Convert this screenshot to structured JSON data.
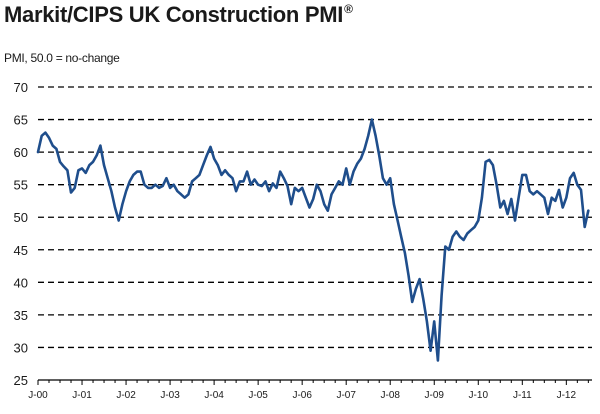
{
  "header": {
    "title": "Markit/CIPS UK Construction PMI",
    "title_mark": "®",
    "subtitle": "PMI, 50.0 = no-change"
  },
  "colors": {
    "line": "#1f4e8c",
    "grid": "#000000"
  },
  "chart_data": {
    "type": "line",
    "title": "Markit/CIPS UK Construction PMI",
    "subtitle": "PMI, 50.0 = no-change",
    "xlabel": "",
    "ylabel": "",
    "ylim": [
      25,
      70
    ],
    "yticks": [
      25,
      30,
      35,
      40,
      45,
      50,
      55,
      60,
      65,
      70
    ],
    "xlim": [
      2000.0,
      2012.583
    ],
    "xticks": [
      {
        "value": 2000,
        "label": "J-00"
      },
      {
        "value": 2001,
        "label": "J-01"
      },
      {
        "value": 2002,
        "label": "J-02"
      },
      {
        "value": 2003,
        "label": "J-03"
      },
      {
        "value": 2004,
        "label": "J-04"
      },
      {
        "value": 2005,
        "label": "J-05"
      },
      {
        "value": 2006,
        "label": "J-06"
      },
      {
        "value": 2007,
        "label": "J-07"
      },
      {
        "value": 2008,
        "label": "J-08"
      },
      {
        "value": 2009,
        "label": "J-09"
      },
      {
        "value": 2010,
        "label": "J-10"
      },
      {
        "value": 2011,
        "label": "J-11"
      },
      {
        "value": 2012,
        "label": "J-12"
      }
    ],
    "grid": "horizontal-dashed",
    "legend": "none",
    "series": [
      {
        "points": [
          [
            2000.0,
            60.0
          ],
          [
            2000.083,
            62.5
          ],
          [
            2000.167,
            63.0
          ],
          [
            2000.25,
            62.2
          ],
          [
            2000.333,
            61.0
          ],
          [
            2000.417,
            60.5
          ],
          [
            2000.5,
            58.5
          ],
          [
            2000.583,
            57.8
          ],
          [
            2000.667,
            57.2
          ],
          [
            2000.75,
            53.8
          ],
          [
            2000.833,
            54.5
          ],
          [
            2000.917,
            57.2
          ],
          [
            2001.0,
            57.5
          ],
          [
            2001.083,
            56.8
          ],
          [
            2001.167,
            58.0
          ],
          [
            2001.25,
            58.5
          ],
          [
            2001.333,
            59.5
          ],
          [
            2001.417,
            61.0
          ],
          [
            2001.5,
            58.0
          ],
          [
            2001.583,
            56.0
          ],
          [
            2001.667,
            54.0
          ],
          [
            2001.75,
            51.5
          ],
          [
            2001.833,
            49.5
          ],
          [
            2001.917,
            52.0
          ],
          [
            2002.0,
            54.0
          ],
          [
            2002.083,
            55.5
          ],
          [
            2002.167,
            56.5
          ],
          [
            2002.25,
            57.0
          ],
          [
            2002.333,
            57.0
          ],
          [
            2002.417,
            55.0
          ],
          [
            2002.5,
            54.5
          ],
          [
            2002.583,
            54.5
          ],
          [
            2002.667,
            55.0
          ],
          [
            2002.75,
            54.5
          ],
          [
            2002.833,
            54.8
          ],
          [
            2002.917,
            56.0
          ],
          [
            2003.0,
            54.5
          ],
          [
            2003.083,
            55.0
          ],
          [
            2003.167,
            54.0
          ],
          [
            2003.25,
            53.5
          ],
          [
            2003.333,
            53.0
          ],
          [
            2003.417,
            53.5
          ],
          [
            2003.5,
            55.5
          ],
          [
            2003.583,
            56.0
          ],
          [
            2003.667,
            56.5
          ],
          [
            2003.75,
            58.0
          ],
          [
            2003.833,
            59.5
          ],
          [
            2003.917,
            60.8
          ],
          [
            2004.0,
            59.0
          ],
          [
            2004.083,
            58.0
          ],
          [
            2004.167,
            56.5
          ],
          [
            2004.25,
            57.2
          ],
          [
            2004.333,
            56.5
          ],
          [
            2004.417,
            56.0
          ],
          [
            2004.5,
            54.0
          ],
          [
            2004.583,
            55.5
          ],
          [
            2004.667,
            55.5
          ],
          [
            2004.75,
            57.0
          ],
          [
            2004.833,
            55.0
          ],
          [
            2004.917,
            55.8
          ],
          [
            2005.0,
            55.0
          ],
          [
            2005.083,
            54.8
          ],
          [
            2005.167,
            55.5
          ],
          [
            2005.25,
            54.0
          ],
          [
            2005.333,
            55.2
          ],
          [
            2005.417,
            54.5
          ],
          [
            2005.5,
            57.0
          ],
          [
            2005.583,
            56.0
          ],
          [
            2005.667,
            54.8
          ],
          [
            2005.75,
            52.0
          ],
          [
            2005.833,
            54.5
          ],
          [
            2005.917,
            54.0
          ],
          [
            2006.0,
            54.5
          ],
          [
            2006.083,
            53.0
          ],
          [
            2006.167,
            51.5
          ],
          [
            2006.25,
            52.8
          ],
          [
            2006.333,
            55.0
          ],
          [
            2006.417,
            54.0
          ],
          [
            2006.5,
            52.0
          ],
          [
            2006.583,
            51.0
          ],
          [
            2006.667,
            53.5
          ],
          [
            2006.75,
            54.5
          ],
          [
            2006.833,
            55.5
          ],
          [
            2006.917,
            55.0
          ],
          [
            2007.0,
            57.5
          ],
          [
            2007.083,
            55.0
          ],
          [
            2007.167,
            57.0
          ],
          [
            2007.25,
            58.2
          ],
          [
            2007.333,
            59.0
          ],
          [
            2007.417,
            60.5
          ],
          [
            2007.5,
            62.5
          ],
          [
            2007.583,
            65.0
          ],
          [
            2007.667,
            62.5
          ],
          [
            2007.75,
            59.5
          ],
          [
            2007.833,
            56.0
          ],
          [
            2007.917,
            55.0
          ],
          [
            2008.0,
            56.0
          ],
          [
            2008.083,
            52.0
          ],
          [
            2008.167,
            49.5
          ],
          [
            2008.25,
            47.0
          ],
          [
            2008.333,
            44.5
          ],
          [
            2008.417,
            41.0
          ],
          [
            2008.5,
            37.0
          ],
          [
            2008.583,
            39.0
          ],
          [
            2008.667,
            40.5
          ],
          [
            2008.75,
            37.5
          ],
          [
            2008.833,
            34.0
          ],
          [
            2008.917,
            29.5
          ],
          [
            2009.0,
            34.0
          ],
          [
            2009.083,
            28.0
          ],
          [
            2009.167,
            38.0
          ],
          [
            2009.25,
            45.5
          ],
          [
            2009.333,
            45.0
          ],
          [
            2009.417,
            47.0
          ],
          [
            2009.5,
            47.8
          ],
          [
            2009.583,
            47.0
          ],
          [
            2009.667,
            46.5
          ],
          [
            2009.75,
            47.5
          ],
          [
            2009.833,
            48.0
          ],
          [
            2009.917,
            48.5
          ],
          [
            2010.0,
            49.5
          ],
          [
            2010.083,
            53.0
          ],
          [
            2010.167,
            58.5
          ],
          [
            2010.25,
            58.8
          ],
          [
            2010.333,
            58.0
          ],
          [
            2010.417,
            55.0
          ],
          [
            2010.5,
            51.5
          ],
          [
            2010.583,
            52.5
          ],
          [
            2010.667,
            50.5
          ],
          [
            2010.75,
            52.8
          ],
          [
            2010.833,
            49.5
          ],
          [
            2010.917,
            53.0
          ],
          [
            2011.0,
            56.5
          ],
          [
            2011.083,
            56.5
          ],
          [
            2011.167,
            54.0
          ],
          [
            2011.25,
            53.5
          ],
          [
            2011.333,
            54.0
          ],
          [
            2011.417,
            53.5
          ],
          [
            2011.5,
            53.0
          ],
          [
            2011.583,
            50.5
          ],
          [
            2011.667,
            53.0
          ],
          [
            2011.75,
            52.5
          ],
          [
            2011.833,
            54.2
          ],
          [
            2011.917,
            51.5
          ],
          [
            2012.0,
            53.0
          ],
          [
            2012.083,
            56.0
          ],
          [
            2012.167,
            56.8
          ],
          [
            2012.25,
            55.0
          ],
          [
            2012.333,
            54.2
          ],
          [
            2012.417,
            48.5
          ],
          [
            2012.5,
            51.0
          ]
        ]
      }
    ]
  }
}
